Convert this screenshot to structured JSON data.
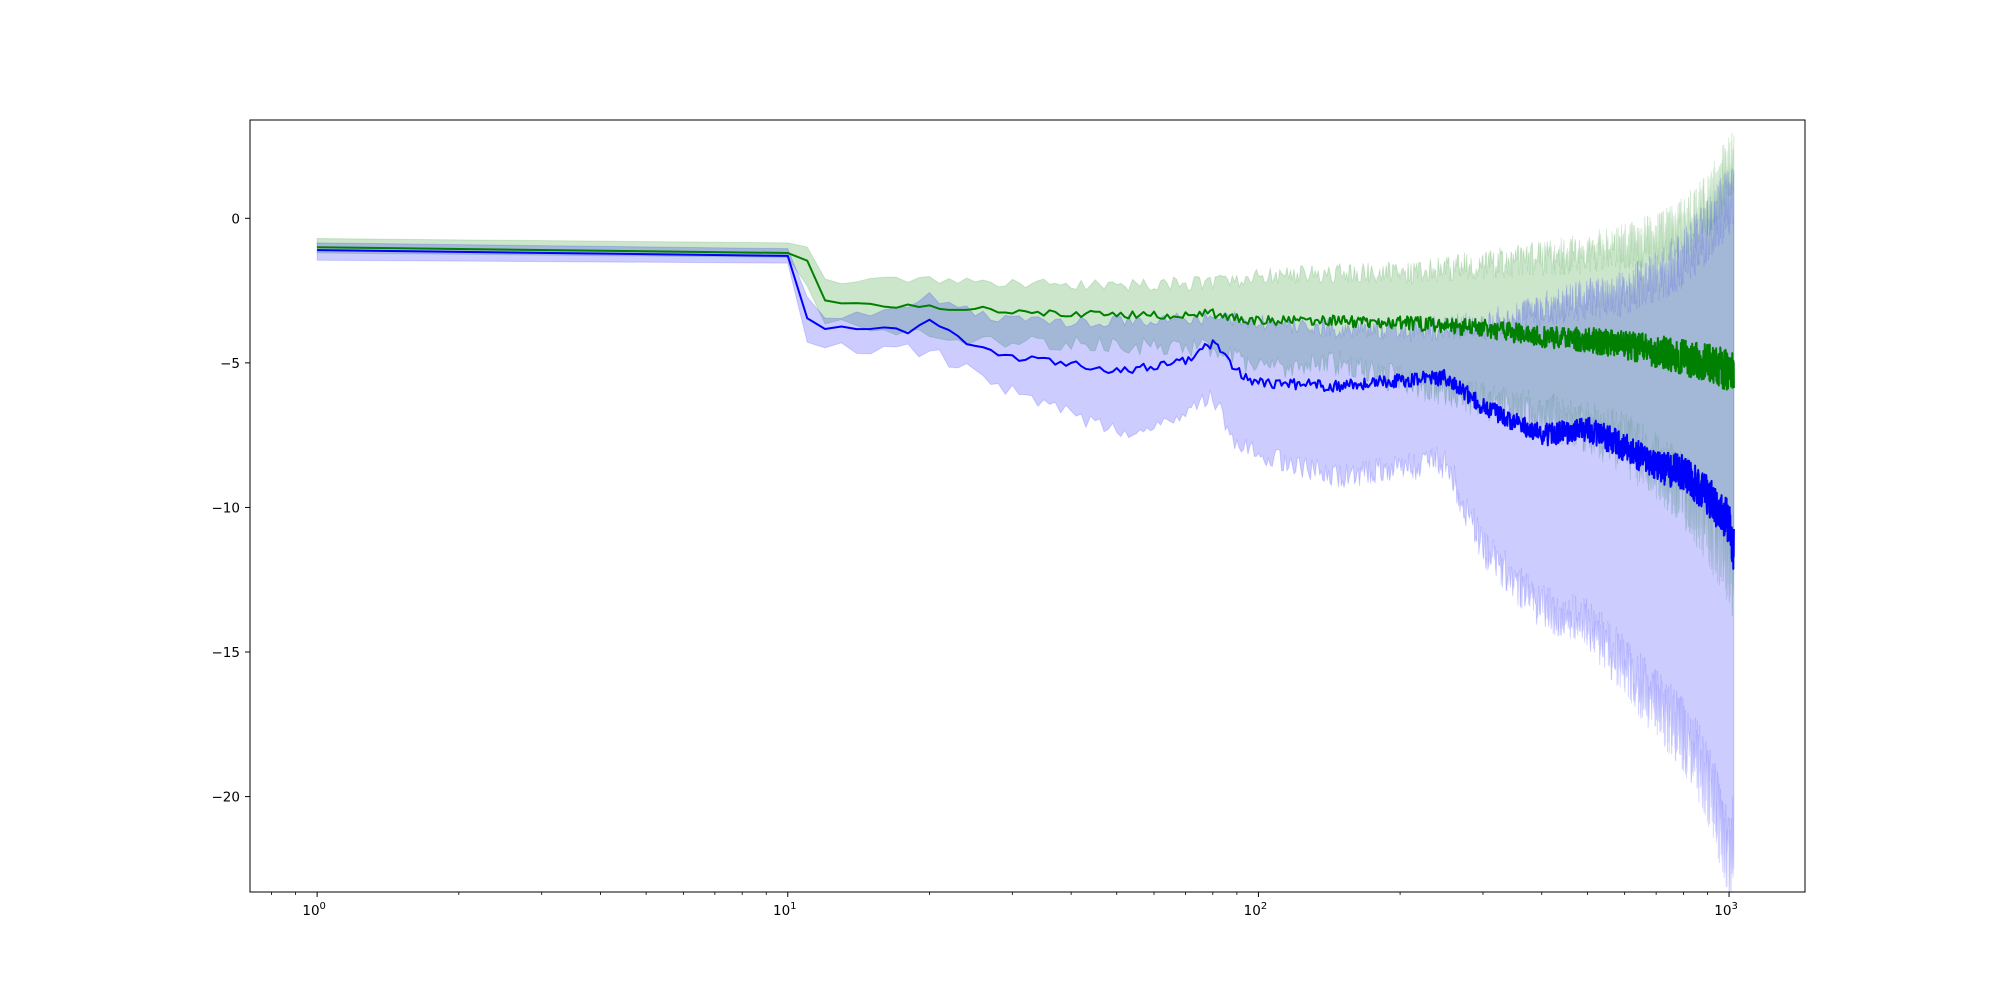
{
  "chart_data": {
    "type": "line",
    "title": "",
    "xlabel": "",
    "ylabel": "",
    "xscale": "log",
    "xlim": [
      0.72,
      1450
    ],
    "ylim": [
      -23.3,
      3.4
    ],
    "grid": false,
    "legend": "none",
    "x_ticks": [
      {
        "value": 1,
        "base": "10",
        "exp": "0"
      },
      {
        "value": 10,
        "base": "10",
        "exp": "1"
      },
      {
        "value": 100,
        "base": "10",
        "exp": "2"
      },
      {
        "value": 1000,
        "base": "10",
        "exp": "3"
      }
    ],
    "y_ticks": [
      {
        "value": 0,
        "label": "0"
      },
      {
        "value": -5,
        "label": "−5"
      },
      {
        "value": -10,
        "label": "−10"
      },
      {
        "value": -15,
        "label": "−15"
      },
      {
        "value": -20,
        "label": "−20"
      }
    ],
    "series": [
      {
        "color": "#008000",
        "band_color": "#008000",
        "band_opacity": 0.2,
        "points": [
          [
            1,
            -1.0
          ],
          [
            10,
            -1.2
          ],
          [
            11,
            -1.5
          ],
          [
            12,
            -2.85
          ],
          [
            15,
            -2.95
          ],
          [
            20,
            -3.05
          ],
          [
            25,
            -3.1
          ],
          [
            30,
            -3.2
          ],
          [
            40,
            -3.3
          ],
          [
            60,
            -3.35
          ],
          [
            80,
            -3.3
          ],
          [
            100,
            -3.55
          ],
          [
            150,
            -3.55
          ],
          [
            200,
            -3.6
          ],
          [
            300,
            -3.8
          ],
          [
            400,
            -4.1
          ],
          [
            500,
            -4.2
          ],
          [
            600,
            -4.4
          ],
          [
            700,
            -4.6
          ],
          [
            800,
            -4.8
          ],
          [
            900,
            -5.0
          ],
          [
            1000,
            -5.3
          ],
          [
            1024,
            -5.3
          ]
        ],
        "upper": [
          [
            1,
            -0.7
          ],
          [
            10,
            -0.85
          ],
          [
            11,
            -0.9
          ],
          [
            12,
            -2.1
          ],
          [
            15,
            -2.15
          ],
          [
            20,
            -2.1
          ],
          [
            30,
            -2.3
          ],
          [
            50,
            -2.3
          ],
          [
            80,
            -2.25
          ],
          [
            100,
            -2.0
          ],
          [
            150,
            -1.9
          ],
          [
            200,
            -1.9
          ],
          [
            300,
            -1.6
          ],
          [
            400,
            -1.4
          ],
          [
            500,
            -1.2
          ],
          [
            600,
            -1.0
          ],
          [
            700,
            -0.7
          ],
          [
            800,
            -0.3
          ],
          [
            900,
            0.4
          ],
          [
            1000,
            1.7
          ],
          [
            1024,
            2.0
          ]
        ],
        "lower": [
          [
            1,
            -1.2
          ],
          [
            10,
            -1.35
          ],
          [
            11,
            -2.2
          ],
          [
            12,
            -3.6
          ],
          [
            15,
            -3.8
          ],
          [
            20,
            -4.0
          ],
          [
            25,
            -4.2
          ],
          [
            30,
            -4.3
          ],
          [
            50,
            -4.4
          ],
          [
            80,
            -4.5
          ],
          [
            100,
            -5.2
          ],
          [
            150,
            -5.0
          ],
          [
            200,
            -5.6
          ],
          [
            300,
            -6.3
          ],
          [
            400,
            -6.8
          ],
          [
            500,
            -7.2
          ],
          [
            600,
            -7.8
          ],
          [
            700,
            -8.6
          ],
          [
            800,
            -9.4
          ],
          [
            900,
            -10.5
          ],
          [
            1000,
            -11.8
          ],
          [
            1024,
            -12.5
          ]
        ]
      },
      {
        "color": "#0000ff",
        "band_color": "#0000ff",
        "band_opacity": 0.2,
        "points": [
          [
            1,
            -1.1
          ],
          [
            10,
            -1.3
          ],
          [
            11,
            -3.4
          ],
          [
            12,
            -3.8
          ],
          [
            15,
            -3.85
          ],
          [
            18,
            -3.9
          ],
          [
            20,
            -3.6
          ],
          [
            25,
            -4.4
          ],
          [
            30,
            -4.8
          ],
          [
            40,
            -5.0
          ],
          [
            50,
            -5.3
          ],
          [
            60,
            -5.1
          ],
          [
            70,
            -4.9
          ],
          [
            80,
            -4.3
          ],
          [
            90,
            -5.3
          ],
          [
            100,
            -5.7
          ],
          [
            150,
            -5.8
          ],
          [
            200,
            -5.6
          ],
          [
            250,
            -5.5
          ],
          [
            300,
            -6.5
          ],
          [
            400,
            -7.5
          ],
          [
            500,
            -7.3
          ],
          [
            600,
            -7.9
          ],
          [
            700,
            -8.6
          ],
          [
            800,
            -8.8
          ],
          [
            900,
            -9.6
          ],
          [
            1000,
            -10.5
          ],
          [
            1024,
            -11.5
          ]
        ],
        "upper": [
          [
            1,
            -0.85
          ],
          [
            10,
            -1.05
          ],
          [
            11,
            -2.8
          ],
          [
            12,
            -3.4
          ],
          [
            15,
            -3.3
          ],
          [
            20,
            -2.7
          ],
          [
            25,
            -3.3
          ],
          [
            30,
            -3.5
          ],
          [
            40,
            -3.6
          ],
          [
            60,
            -3.5
          ],
          [
            80,
            -3.4
          ],
          [
            100,
            -3.6
          ],
          [
            150,
            -3.8
          ],
          [
            200,
            -3.9
          ],
          [
            300,
            -3.7
          ],
          [
            400,
            -3.1
          ],
          [
            500,
            -2.8
          ],
          [
            600,
            -2.6
          ],
          [
            700,
            -2.0
          ],
          [
            800,
            -1.4
          ],
          [
            900,
            -0.4
          ],
          [
            1000,
            0.6
          ],
          [
            1024,
            0.9
          ]
        ],
        "lower": [
          [
            1,
            -1.45
          ],
          [
            10,
            -1.55
          ],
          [
            11,
            -4.3
          ],
          [
            12,
            -4.5
          ],
          [
            15,
            -4.5
          ],
          [
            20,
            -4.6
          ],
          [
            25,
            -5.4
          ],
          [
            30,
            -6.0
          ],
          [
            40,
            -6.8
          ],
          [
            50,
            -7.4
          ],
          [
            60,
            -7.3
          ],
          [
            70,
            -6.7
          ],
          [
            80,
            -6.2
          ],
          [
            90,
            -7.8
          ],
          [
            100,
            -8.2
          ],
          [
            150,
            -8.9
          ],
          [
            200,
            -8.6
          ],
          [
            250,
            -8.4
          ],
          [
            300,
            -11.4
          ],
          [
            400,
            -13.5
          ],
          [
            500,
            -14.0
          ],
          [
            600,
            -15.5
          ],
          [
            700,
            -16.8
          ],
          [
            800,
            -17.8
          ],
          [
            900,
            -19.5
          ],
          [
            1000,
            -22.0
          ],
          [
            1024,
            -21.5
          ]
        ]
      }
    ]
  }
}
